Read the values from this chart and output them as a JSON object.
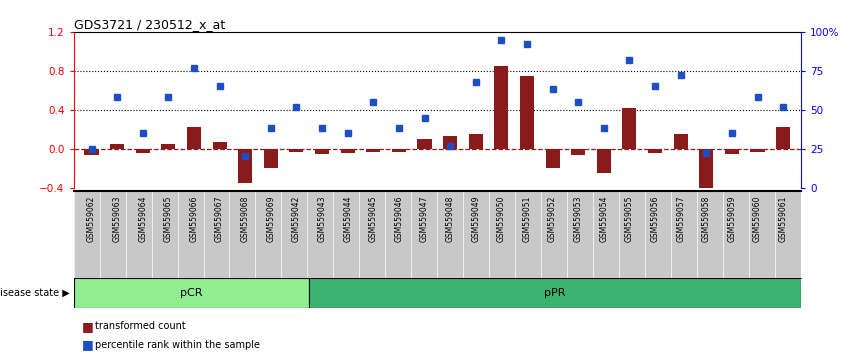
{
  "title": "GDS3721 / 230512_x_at",
  "samples": [
    "GSM559062",
    "GSM559063",
    "GSM559064",
    "GSM559065",
    "GSM559066",
    "GSM559067",
    "GSM559068",
    "GSM559069",
    "GSM559042",
    "GSM559043",
    "GSM559044",
    "GSM559045",
    "GSM559046",
    "GSM559047",
    "GSM559048",
    "GSM559049",
    "GSM559050",
    "GSM559051",
    "GSM559052",
    "GSM559053",
    "GSM559054",
    "GSM559055",
    "GSM559056",
    "GSM559057",
    "GSM559058",
    "GSM559059",
    "GSM559060",
    "GSM559061"
  ],
  "bar_values": [
    -0.06,
    0.05,
    -0.04,
    0.05,
    0.22,
    0.07,
    -0.35,
    -0.2,
    -0.03,
    -0.05,
    -0.04,
    -0.03,
    -0.03,
    0.1,
    0.13,
    0.15,
    0.85,
    0.75,
    -0.2,
    -0.07,
    -0.25,
    0.42,
    -0.04,
    0.15,
    -0.45,
    -0.05,
    -0.03,
    0.22
  ],
  "percentile_values": [
    25,
    58,
    35,
    58,
    77,
    65,
    20,
    38,
    52,
    38,
    35,
    55,
    38,
    45,
    27,
    68,
    95,
    92,
    63,
    55,
    38,
    82,
    65,
    72,
    22,
    35,
    58,
    52
  ],
  "pCR_count": 9,
  "pPR_count": 19,
  "bar_color": "#8B1A1A",
  "blue_color": "#1C4FC4",
  "zero_line_color": "#8B1A1A",
  "ylim_left": [
    -0.4,
    1.2
  ],
  "ylim_right": [
    0,
    100
  ],
  "yticks_left": [
    -0.4,
    0.0,
    0.4,
    0.8,
    1.2
  ],
  "yticks_right": [
    0,
    25,
    50,
    75,
    100
  ],
  "hlines": [
    0.4,
    0.8
  ],
  "pCR_color": "#90EE90",
  "pPR_color": "#3CB371",
  "label_bg": "#C8C8C8",
  "disease_state_label": "disease state"
}
